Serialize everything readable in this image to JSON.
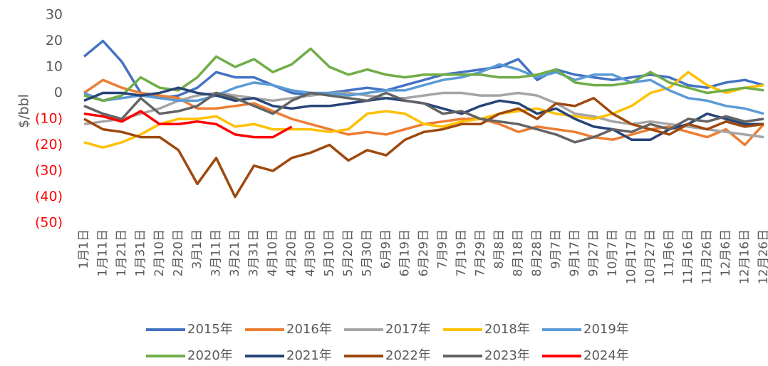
{
  "chart_data": {
    "type": "line",
    "y_label": "$/bbl",
    "categories": [
      "1月1日",
      "1月11日",
      "1月21日",
      "1月31日",
      "2月10日",
      "2月20日",
      "3月1日",
      "3月11日",
      "3月21日",
      "3月31日",
      "4月10日",
      "4月20日",
      "4月30日",
      "5月10日",
      "5月20日",
      "5月30日",
      "6月9日",
      "6月19日",
      "6月29日",
      "7月9日",
      "7月19日",
      "7月29日",
      "8月8日",
      "8月18日",
      "8月28日",
      "9月7日",
      "9月17日",
      "9月27日",
      "10月7日",
      "10月17日",
      "10月27日",
      "11月6日",
      "11月16日",
      "11月26日",
      "12月6日",
      "12月16日",
      "12月26日"
    ],
    "ylim": [
      -50,
      30
    ],
    "yticks": [
      30,
      20,
      10,
      0,
      {
        "value": -10,
        "label": "(10)"
      },
      {
        "value": -20,
        "label": "(20)"
      },
      {
        "value": -30,
        "label": "(30)"
      },
      {
        "value": -40,
        "label": "(40)"
      },
      {
        "value": -50,
        "label": "(50)"
      }
    ],
    "negative_tick_color": "#ff0000",
    "series": [
      {
        "name": "2015年",
        "color": "#4472c4",
        "values": [
          14,
          20,
          12,
          0,
          -2,
          -1,
          2,
          8,
          6,
          6,
          3,
          0,
          -1,
          0,
          1,
          2,
          1,
          3,
          5,
          7,
          8,
          9,
          10,
          13,
          5,
          9,
          7,
          6,
          5,
          6,
          7,
          6,
          3,
          2,
          4,
          5,
          3
        ]
      },
      {
        "name": "2016年",
        "color": "#ed7d31",
        "values": [
          0,
          5,
          2,
          0,
          -1,
          -2,
          -6,
          -6,
          -5,
          -4,
          -7,
          -10,
          -12,
          -14,
          -16,
          -15,
          -16,
          -14,
          -12,
          -11,
          -10,
          -10,
          -12,
          -15,
          -13,
          -14,
          -15,
          -17,
          -18,
          -16,
          -14,
          -13,
          -15,
          -17,
          -14,
          -20,
          -12
        ]
      },
      {
        "name": "2017年",
        "color": "#a5a5a5",
        "values": [
          -12,
          -11,
          -10,
          -8,
          -6,
          -3,
          -1,
          0,
          -1,
          -2,
          -3,
          -2,
          -1,
          0,
          0,
          -1,
          -2,
          -2,
          -1,
          0,
          0,
          -1,
          -1,
          0,
          -1,
          -4,
          -8,
          -9,
          -11,
          -12,
          -11,
          -12,
          -13,
          -14,
          -15,
          -16,
          -17
        ]
      },
      {
        "name": "2018年",
        "color": "#ffc000",
        "values": [
          -19,
          -21,
          -19,
          -16,
          -12,
          -10,
          -10,
          -9,
          -13,
          -12,
          -14,
          -14,
          -14,
          -15,
          -14,
          -8,
          -7,
          -8,
          -12,
          -13,
          -11,
          -10,
          -8,
          -7,
          -6,
          -8,
          -9,
          -10,
          -8,
          -5,
          0,
          2,
          8,
          3,
          0,
          2,
          3
        ]
      },
      {
        "name": "2019年",
        "color": "#5b9bd5",
        "values": [
          0,
          -3,
          -2,
          -1,
          -2,
          -3,
          -3,
          -1,
          2,
          4,
          3,
          1,
          0,
          0,
          -1,
          0,
          1,
          1,
          3,
          5,
          6,
          8,
          11,
          9,
          6,
          8,
          5,
          7,
          7,
          4,
          5,
          1,
          -2,
          -3,
          -5,
          -6,
          -8
        ]
      },
      {
        "name": "2020年",
        "color": "#70ad47",
        "values": [
          -1,
          -3,
          -1,
          6,
          2,
          1,
          6,
          14,
          10,
          13,
          8,
          11,
          17,
          10,
          7,
          9,
          7,
          6,
          7,
          7,
          7,
          7,
          6,
          6,
          7,
          9,
          4,
          3,
          3,
          4,
          8,
          4,
          2,
          0,
          1,
          2,
          1
        ]
      },
      {
        "name": "2021年",
        "color": "#264478",
        "values": [
          -3,
          0,
          0,
          -1,
          0,
          2,
          0,
          -1,
          -3,
          -2,
          -5,
          -6,
          -5,
          -5,
          -4,
          -3,
          -2,
          -3,
          -4,
          -6,
          -8,
          -5,
          -3,
          -4,
          -8,
          -6,
          -10,
          -13,
          -14,
          -18,
          -18,
          -14,
          -12,
          -8,
          -10,
          -12,
          -12
        ]
      },
      {
        "name": "2022年",
        "color": "#9e480e",
        "values": [
          -10,
          -14,
          -15,
          -17,
          -17,
          -22,
          -35,
          -25,
          -40,
          -28,
          -30,
          -25,
          -23,
          -20,
          -26,
          -22,
          -24,
          -18,
          -15,
          -14,
          -12,
          -12,
          -8,
          -6,
          -10,
          -4,
          -5,
          -2,
          -8,
          -12,
          -14,
          -16,
          -12,
          -14,
          -11,
          -13,
          -12
        ]
      },
      {
        "name": "2023年",
        "color": "#636363",
        "values": [
          -5,
          -8,
          -10,
          -2,
          -8,
          -7,
          -5,
          0,
          -2,
          -5,
          -8,
          -3,
          0,
          -1,
          -2,
          -3,
          0,
          -3,
          -4,
          -8,
          -7,
          -10,
          -11,
          -12,
          -14,
          -16,
          -19,
          -17,
          -14,
          -15,
          -12,
          -14,
          -10,
          -11,
          -9,
          -11,
          -10
        ]
      },
      {
        "name": "2024年",
        "color": "#ff0000",
        "values": [
          -8,
          -9,
          -11,
          -7,
          -12,
          -12,
          -11,
          -12,
          -16,
          -17,
          -17,
          -13,
          null,
          null,
          null,
          null,
          null,
          null,
          null,
          null,
          null,
          null,
          null,
          null,
          null,
          null,
          null,
          null,
          null,
          null,
          null,
          null,
          null,
          null,
          null,
          null,
          null
        ]
      }
    ]
  }
}
